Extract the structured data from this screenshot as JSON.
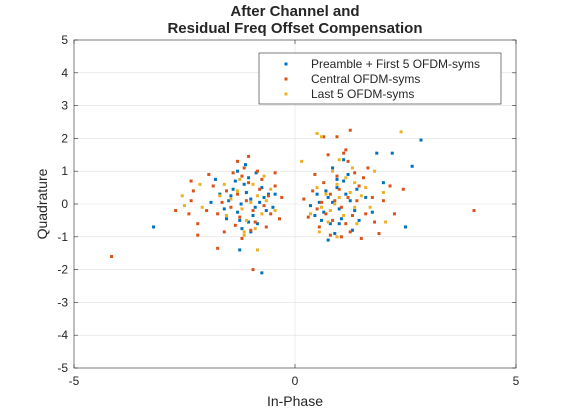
{
  "chart_data": {
    "type": "scatter",
    "title_lines": [
      "After Channel and",
      "Residual Freq Offset Compensation"
    ],
    "xlabel": "In-Phase",
    "ylabel": "Quadrature",
    "xlim": [
      -5,
      5
    ],
    "ylim": [
      -5,
      5
    ],
    "x_ticks": [
      -5,
      0,
      5
    ],
    "y_ticks": [
      -5,
      -4,
      -3,
      -2,
      -1,
      0,
      1,
      2,
      3,
      4,
      5
    ],
    "grid": true,
    "legend_position": "top-right",
    "series": [
      {
        "name": "Preamble + First 5 OFDM-syms",
        "color": "#0072BD",
        "points": [
          [
            -1.22,
            0.0
          ],
          [
            -1.0,
            0.15
          ],
          [
            -0.9,
            -0.1
          ],
          [
            -1.1,
            0.35
          ],
          [
            -1.3,
            -0.25
          ],
          [
            -0.8,
            0.05
          ],
          [
            -1.4,
            0.45
          ],
          [
            -0.95,
            -0.35
          ],
          [
            -1.15,
            0.6
          ],
          [
            -0.7,
            0.2
          ],
          [
            -1.25,
            -0.5
          ],
          [
            -1.05,
            0.8
          ],
          [
            -0.85,
            -0.6
          ],
          [
            -1.5,
            0.1
          ],
          [
            -0.65,
            -0.2
          ],
          [
            -1.35,
            0.7
          ],
          [
            -1.2,
            -0.75
          ],
          [
            -0.75,
            0.5
          ],
          [
            -1.6,
            -0.15
          ],
          [
            -1.0,
            -0.85
          ],
          [
            -0.6,
            0.3
          ],
          [
            -1.45,
            0.25
          ],
          [
            -1.12,
            1.2
          ],
          [
            -0.88,
            0.95
          ],
          [
            -1.3,
            1.0
          ],
          [
            -1.8,
            0.75
          ],
          [
            -1.7,
            0.3
          ],
          [
            -1.55,
            -0.45
          ],
          [
            -0.5,
            -0.1
          ],
          [
            -1.9,
            0.05
          ],
          [
            0.85,
            0.05
          ],
          [
            1.0,
            -0.15
          ],
          [
            0.75,
            0.2
          ],
          [
            1.15,
            0.3
          ],
          [
            0.65,
            -0.25
          ],
          [
            1.05,
            -0.45
          ],
          [
            0.95,
            0.5
          ],
          [
            1.25,
            0.1
          ],
          [
            0.55,
            0.05
          ],
          [
            1.35,
            -0.2
          ],
          [
            0.8,
            -0.6
          ],
          [
            1.1,
            0.7
          ],
          [
            0.7,
            0.4
          ],
          [
            1.4,
            0.45
          ],
          [
            0.9,
            -0.9
          ],
          [
            0.6,
            -0.5
          ],
          [
            1.45,
            -0.5
          ],
          [
            1.2,
            0.9
          ],
          [
            0.5,
            0.3
          ],
          [
            1.6,
            0.2
          ],
          [
            0.75,
            -1.1
          ],
          [
            1.3,
            -0.8
          ],
          [
            1.1,
            1.35
          ],
          [
            0.45,
            -0.35
          ],
          [
            1.75,
            -0.25
          ],
          [
            0.85,
            1.1
          ],
          [
            2.0,
            0.65
          ],
          [
            1.85,
            1.55
          ],
          [
            2.2,
            1.55
          ],
          [
            2.65,
            1.15
          ],
          [
            2.85,
            1.95
          ],
          [
            -3.2,
            -0.7
          ],
          [
            -0.75,
            -2.1
          ],
          [
            -1.25,
            -1.4
          ],
          [
            1.0,
            -0.6
          ],
          [
            0.95,
            0.75
          ],
          [
            -1.05,
            -0.55
          ],
          [
            2.5,
            -0.7
          ],
          [
            -0.45,
            0.3
          ],
          [
            0.35,
            -0.05
          ]
        ]
      },
      {
        "name": "Central OFDM-syms",
        "color": "#D95319",
        "points": [
          [
            -1.1,
            0.1
          ],
          [
            -0.95,
            -0.2
          ],
          [
            -1.3,
            0.3
          ],
          [
            -0.8,
            0.45
          ],
          [
            -1.25,
            -0.4
          ],
          [
            -1.05,
            0.65
          ],
          [
            -0.7,
            -0.05
          ],
          [
            -1.45,
            -0.1
          ],
          [
            -0.9,
            -0.55
          ],
          [
            -1.2,
            0.85
          ],
          [
            -0.6,
            0.25
          ],
          [
            -1.55,
            0.4
          ],
          [
            -1.0,
            -0.8
          ],
          [
            -0.75,
            0.75
          ],
          [
            -1.35,
            -0.65
          ],
          [
            -1.65,
            0.05
          ],
          [
            -0.55,
            -0.3
          ],
          [
            -1.15,
            1.1
          ],
          [
            -0.85,
            1.0
          ],
          [
            -1.75,
            -0.3
          ],
          [
            -1.4,
            0.95
          ],
          [
            -0.65,
            -0.7
          ],
          [
            -1.85,
            0.55
          ],
          [
            -2.0,
            -0.2
          ],
          [
            -1.6,
            -0.85
          ],
          [
            -0.45,
            0.55
          ],
          [
            -2.2,
            -0.6
          ],
          [
            -2.4,
            -0.3
          ],
          [
            -1.3,
            1.3
          ],
          [
            -1.95,
            0.9
          ],
          [
            -1.2,
            -1.05
          ],
          [
            -2.2,
            -0.95
          ],
          [
            -0.35,
            -0.45
          ],
          [
            -2.35,
            0.1
          ],
          [
            -2.3,
            0.4
          ],
          [
            -0.3,
            0.2
          ],
          [
            -4.15,
            -1.6
          ],
          [
            -2.7,
            -0.2
          ],
          [
            -1.75,
            -1.35
          ],
          [
            -0.95,
            -2.0
          ],
          [
            -1.05,
            1.45
          ],
          [
            -2.35,
            0.7
          ],
          [
            -0.45,
            0.95
          ],
          [
            0.9,
            0.1
          ],
          [
            1.05,
            -0.1
          ],
          [
            0.8,
            0.3
          ],
          [
            1.2,
            0.2
          ],
          [
            0.7,
            -0.3
          ],
          [
            1.0,
            0.45
          ],
          [
            1.3,
            -0.35
          ],
          [
            0.6,
            0.05
          ],
          [
            1.15,
            -0.6
          ],
          [
            0.85,
            -0.5
          ],
          [
            1.4,
            0.1
          ],
          [
            0.5,
            -0.15
          ],
          [
            1.45,
            0.55
          ],
          [
            0.65,
            0.65
          ],
          [
            1.6,
            -0.3
          ],
          [
            0.95,
            0.85
          ],
          [
            1.25,
            -0.85
          ],
          [
            0.4,
            0.4
          ],
          [
            1.75,
            0.2
          ],
          [
            0.55,
            -0.7
          ],
          [
            1.8,
            -0.55
          ],
          [
            1.35,
            0.95
          ],
          [
            0.3,
            -0.4
          ],
          [
            2.0,
            0.1
          ],
          [
            1.05,
            -1.0
          ],
          [
            2.15,
            0.55
          ],
          [
            1.2,
            1.3
          ],
          [
            0.75,
            1.5
          ],
          [
            1.25,
            2.25
          ],
          [
            0.95,
            2.05
          ],
          [
            1.1,
            1.55
          ],
          [
            1.55,
            0.8
          ],
          [
            2.25,
            -0.3
          ],
          [
            0.45,
            0.9
          ],
          [
            1.9,
            -0.9
          ],
          [
            2.45,
            0.45
          ],
          [
            4.05,
            -0.2
          ],
          [
            1.65,
            1.1
          ],
          [
            0.8,
            -0.95
          ],
          [
            0.2,
            0.15
          ],
          [
            1.5,
            -1.05
          ],
          [
            0.65,
            2.05
          ],
          [
            1.15,
            1.65
          ]
        ]
      },
      {
        "name": "Last 5 OFDM-syms",
        "color": "#EDB120",
        "points": [
          [
            -1.0,
            0.05
          ],
          [
            -1.2,
            -0.15
          ],
          [
            -0.85,
            0.25
          ],
          [
            -1.3,
            0.4
          ],
          [
            -0.75,
            -0.3
          ],
          [
            -1.1,
            -0.5
          ],
          [
            -0.95,
            0.6
          ],
          [
            -1.45,
            0.15
          ],
          [
            -0.65,
            0.1
          ],
          [
            -1.25,
            0.75
          ],
          [
            -0.9,
            -0.75
          ],
          [
            -1.55,
            -0.35
          ],
          [
            -0.55,
            0.45
          ],
          [
            -1.6,
            0.6
          ],
          [
            -1.15,
            -0.95
          ],
          [
            -0.45,
            -0.2
          ],
          [
            -1.7,
            0.25
          ],
          [
            -2.1,
            -0.1
          ],
          [
            -2.15,
            0.6
          ],
          [
            -2.5,
            -0.05
          ],
          [
            -2.55,
            0.25
          ],
          [
            -1.15,
            -0.85
          ],
          [
            -0.85,
            -1.4
          ],
          [
            -0.7,
            0.85
          ],
          [
            0.9,
            0.0
          ],
          [
            1.0,
            0.2
          ],
          [
            0.8,
            -0.2
          ],
          [
            1.1,
            -0.35
          ],
          [
            0.7,
            0.3
          ],
          [
            1.25,
            0.35
          ],
          [
            0.6,
            -0.1
          ],
          [
            1.35,
            -0.1
          ],
          [
            0.95,
            0.6
          ],
          [
            0.75,
            -0.55
          ],
          [
            1.15,
            0.8
          ],
          [
            1.5,
            0.25
          ],
          [
            0.5,
            0.5
          ],
          [
            1.4,
            -0.6
          ],
          [
            0.85,
            1.0
          ],
          [
            1.6,
            0.5
          ],
          [
            0.55,
            -0.85
          ],
          [
            1.7,
            -0.1
          ],
          [
            1.3,
            1.1
          ],
          [
            1.0,
            1.35
          ],
          [
            0.35,
            -0.3
          ],
          [
            2.0,
            0.35
          ],
          [
            0.15,
            1.3
          ],
          [
            0.6,
            2.05
          ],
          [
            0.5,
            2.15
          ],
          [
            2.4,
            2.2
          ],
          [
            1.8,
            1.0
          ],
          [
            1.35,
            0.65
          ],
          [
            0.95,
            -1.0
          ],
          [
            2.05,
            -0.55
          ]
        ]
      }
    ]
  }
}
